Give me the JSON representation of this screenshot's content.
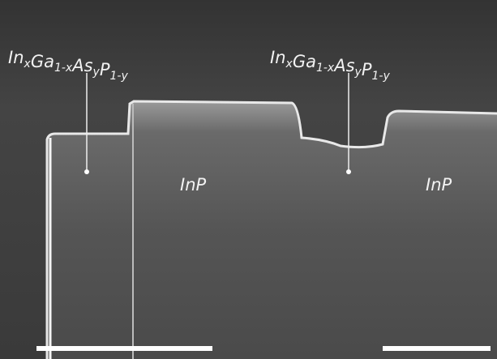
{
  "labels": [
    {
      "segments": [
        [
          "In",
          "x"
        ],
        [
          "Ga",
          "1-x"
        ],
        [
          "As",
          "y"
        ],
        [
          "P",
          "1-y"
        ]
      ]
    },
    {
      "segments": [
        [
          "In",
          "x"
        ],
        [
          "Ga",
          "1-x"
        ],
        [
          "As",
          "y"
        ],
        [
          "P",
          "1-y"
        ]
      ]
    }
  ],
  "regions": [
    "InP",
    "InP"
  ]
}
